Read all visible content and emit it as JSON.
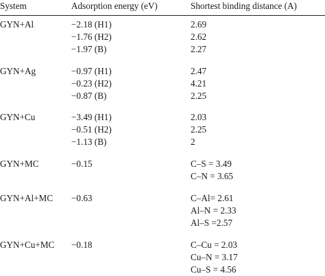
{
  "table": {
    "headers": [
      "System",
      "Adsorption energy (eV)",
      "Shortest binding distance (A)"
    ],
    "groups": [
      {
        "system": "GYN+Al",
        "rows": [
          {
            "energy": "−2.18 (H1)",
            "distance": "2.69"
          },
          {
            "energy": "−1.76 (H2)",
            "distance": "2.62"
          },
          {
            "energy": "−1.97 (B)",
            "distance": "2.27"
          }
        ]
      },
      {
        "system": "GYN+Ag",
        "rows": [
          {
            "energy": "−0.97 (H1)",
            "distance": "2.47"
          },
          {
            "energy": "−0.23 (H2)",
            "distance": "4.21"
          },
          {
            "energy": "−0.87 (B)",
            "distance": "2.25"
          }
        ]
      },
      {
        "system": "GYN+Cu",
        "rows": [
          {
            "energy": "−3.49 (H1)",
            "distance": "2.03"
          },
          {
            "energy": "−0.51 (H2)",
            "distance": "2.25"
          },
          {
            "energy": "−1.13 (B)",
            "distance": "2"
          }
        ]
      },
      {
        "system": "GYN+MC",
        "rows": [
          {
            "energy": "−0.15",
            "distance": "C–S = 3.49"
          },
          {
            "energy": "",
            "distance": "C–N = 3.65"
          }
        ]
      },
      {
        "system": "GYN+Al+MC",
        "rows": [
          {
            "energy": "−0.63",
            "distance": "C–Al= 2.61"
          },
          {
            "energy": "",
            "distance": "Al–N = 2.33"
          },
          {
            "energy": "",
            "distance": "Al–S =2.57"
          }
        ]
      },
      {
        "system": "GYN+Cu+MC",
        "rows": [
          {
            "energy": "−0.18",
            "distance": "C–Cu = 2.03"
          },
          {
            "energy": "",
            "distance": "Cu–N = 3.17"
          },
          {
            "energy": "",
            "distance": "Cu–S = 4.56"
          }
        ]
      }
    ]
  }
}
